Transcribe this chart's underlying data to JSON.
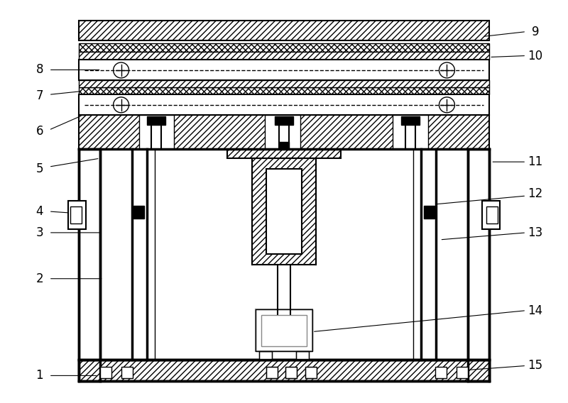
{
  "bg_color": "#ffffff",
  "line_color": "#000000",
  "figsize": [
    8.0,
    5.68
  ],
  "dpi": 100,
  "lw_thin": 1.0,
  "lw_med": 1.5,
  "lw_thick": 2.5
}
